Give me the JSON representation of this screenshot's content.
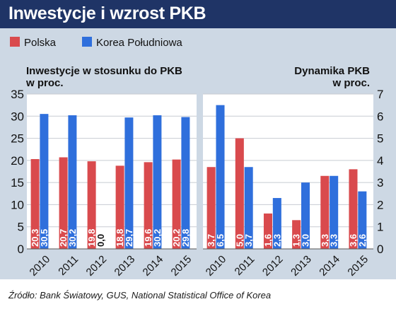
{
  "title": "Inwestycje i wzrost PKB",
  "source": "Źródło: Bank Światowy, GUS, National Statistical Office of Korea",
  "colors": {
    "polska": "#d94a4d",
    "korea": "#2f6fdc",
    "header": "#1f3466",
    "panel": "#cdd8e4"
  },
  "chart_data": [
    {
      "type": "bar",
      "title": "Inwestycje w stosunku do PKB\nw proc.",
      "categories": [
        "2010",
        "2011",
        "2012",
        "2013",
        "2014",
        "2015"
      ],
      "series": [
        {
          "name": "Polska",
          "values": [
            20.3,
            20.7,
            19.8,
            18.8,
            19.6,
            20.2
          ],
          "labels": [
            "20,3",
            "20,7",
            "19,8",
            "18,8",
            "19,6",
            "20,2"
          ]
        },
        {
          "name": "Korea Południowa",
          "values": [
            30.5,
            30.2,
            0.0,
            29.7,
            30.2,
            29.8
          ],
          "labels": [
            "30,5",
            "30,2",
            "0,0",
            "29,7",
            "30,2",
            "29,8"
          ]
        }
      ],
      "ylim": [
        0,
        35
      ],
      "yticks": [
        "0",
        "5",
        "10",
        "15",
        "20",
        "25",
        "30",
        "35"
      ],
      "y_axis_side": "left",
      "grid": true
    },
    {
      "type": "bar",
      "title": "Dynamika PKB\nw proc.",
      "categories": [
        "2010",
        "2011",
        "2012",
        "2013",
        "2014",
        "2015"
      ],
      "series": [
        {
          "name": "Polska",
          "values": [
            3.7,
            5.0,
            1.6,
            1.3,
            3.3,
            3.6
          ],
          "labels": [
            "3,7",
            "5,0",
            "1,6",
            "1,3",
            "3,3",
            "3,6"
          ]
        },
        {
          "name": "Korea Południowa",
          "values": [
            6.5,
            3.7,
            2.3,
            3.0,
            3.3,
            2.6
          ],
          "labels": [
            "6,5",
            "3,7",
            "2,3",
            "3,0",
            "3,3",
            "2,6"
          ]
        }
      ],
      "ylim": [
        0,
        7
      ],
      "yticks": [
        "0",
        "1",
        "2",
        "3",
        "4",
        "5",
        "6",
        "7"
      ],
      "y_axis_side": "right",
      "grid": true
    }
  ],
  "legend": {
    "placement": "top-left",
    "items": [
      {
        "label": "Polska",
        "color": "#d94a4d"
      },
      {
        "label": "Korea Południowa",
        "color": "#2f6fdc"
      }
    ]
  }
}
